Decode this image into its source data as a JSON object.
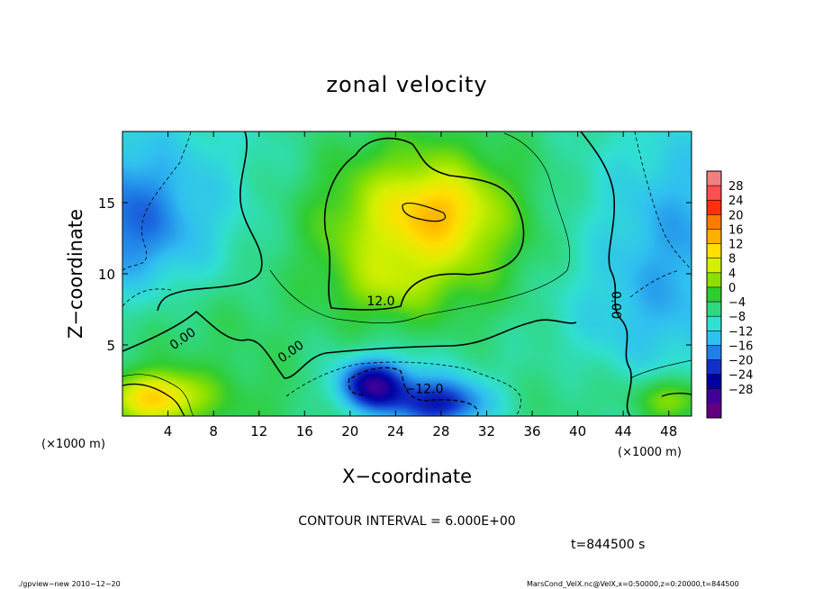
{
  "chart_data": {
    "type": "heatmap",
    "title": "zonal velocity",
    "xlabel": "X−coordinate",
    "ylabel": "Z−coordinate",
    "x_unit_left": "(×1000 m)",
    "x_unit_right": "(×1000 m)",
    "xlim": [
      0,
      50
    ],
    "ylim": [
      0,
      20
    ],
    "x_ticks": [
      4,
      8,
      12,
      16,
      20,
      24,
      28,
      32,
      36,
      40,
      44,
      48
    ],
    "y_ticks": [
      5,
      10,
      15
    ],
    "colorbar": {
      "labels": [
        "28",
        "24",
        "20",
        "16",
        "12",
        "8",
        "4",
        "0",
        "−4",
        "−8",
        "−12",
        "−16",
        "−20",
        "−24",
        "−28"
      ],
      "colors": [
        "#f08080",
        "#ff5050",
        "#ff3010",
        "#ff7a00",
        "#ffb000",
        "#ffe000",
        "#d4f000",
        "#8ae000",
        "#30cc30",
        "#30d880",
        "#30e0d0",
        "#30c0f0",
        "#2080e8",
        "#1030c8",
        "#0000a0",
        "#400098",
        "#600080"
      ]
    },
    "contour_labels": [
      {
        "text": "12.0",
        "x": 22.7,
        "y": 7.8
      },
      {
        "text": "0.00",
        "x": 5.5,
        "y": 5.2
      },
      {
        "text": "0.00",
        "x": 15.0,
        "y": 4.3
      },
      {
        "text": "−12.0",
        "x": 26.5,
        "y": 1.6
      },
      {
        "text": "0.00",
        "x": 43.0,
        "y": 7.8
      }
    ],
    "blobs": [
      {
        "x": 0,
        "y": 18,
        "rx": 15,
        "ry": 7,
        "v": -5
      },
      {
        "x": 0,
        "y": 13,
        "rx": 8,
        "ry": 5,
        "v": -10
      },
      {
        "x": 50,
        "y": 13,
        "rx": 10,
        "ry": 9,
        "v": -9
      },
      {
        "x": 44,
        "y": 5,
        "rx": 8,
        "ry": 6,
        "v": -4
      },
      {
        "x": 26,
        "y": 13.5,
        "rx": 9,
        "ry": 5.5,
        "v": 14
      },
      {
        "x": 28,
        "y": 14.5,
        "rx": 4,
        "ry": 2.5,
        "v": 6
      },
      {
        "x": 23,
        "y": 9,
        "rx": 4,
        "ry": 2,
        "v": 4
      },
      {
        "x": 22,
        "y": 2.2,
        "rx": 3,
        "ry": 1.8,
        "v": -18
      },
      {
        "x": 28,
        "y": 0.8,
        "rx": 4,
        "ry": 1.6,
        "v": -14
      },
      {
        "x": 25,
        "y": 2,
        "rx": 9,
        "ry": 2.6,
        "v": -6
      },
      {
        "x": 3,
        "y": 1.3,
        "rx": 4,
        "ry": 1.8,
        "v": 16
      },
      {
        "x": 48.5,
        "y": 1.2,
        "rx": 3.5,
        "ry": 1.6,
        "v": 10
      },
      {
        "x": 12,
        "y": 1.5,
        "rx": 10,
        "ry": 3,
        "v": 3
      },
      {
        "x": 40,
        "y": 2,
        "rx": 8,
        "ry": 3,
        "v": 3
      },
      {
        "x": 6,
        "y": 7,
        "rx": 8,
        "ry": 3,
        "v": 2
      }
    ]
  },
  "footer": {
    "contour_interval": "CONTOUR INTERVAL = 6.000E+00",
    "time": "t=844500 s",
    "left_note": "./gpview−new   2010−12−20",
    "right_note": "MarsCond_VelX.nc@VelX,x=0:50000,z=0:20000,t=844500"
  }
}
